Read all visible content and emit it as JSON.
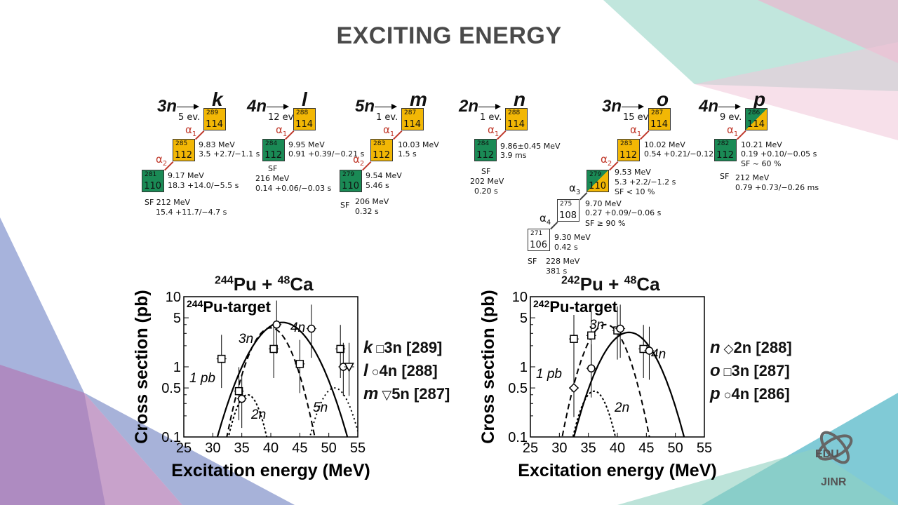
{
  "title": "EXCITING ENERGY",
  "chains": [
    {
      "channel": "3n",
      "letter": "k",
      "evts": "5 ev.",
      "boxes": [
        {
          "a": "289",
          "z": "114",
          "c": "yellow",
          "x": 290,
          "y": 154
        },
        {
          "a": "285",
          "z": "112",
          "c": "yellow",
          "x": 246,
          "y": 198
        },
        {
          "a": "281",
          "z": "110",
          "c": "green",
          "x": 202,
          "y": 242
        }
      ],
      "alphas": [
        {
          "t": "α1",
          "x": 264,
          "y": 176
        },
        {
          "t": "α2",
          "x": 222,
          "y": 218
        }
      ],
      "decays": [
        {
          "t": "9.83 MeV",
          "x": 283,
          "y": 201
        },
        {
          "t": "3.5 +2.7/−1.1 s",
          "x": 283,
          "y": 214
        },
        {
          "t": "9.17 MeV",
          "x": 239,
          "y": 245
        },
        {
          "t": "18.3 +14.0/−5.5 s",
          "x": 239,
          "y": 259
        },
        {
          "t": "SF 212 MeV",
          "x": 206,
          "y": 283
        },
        {
          "t": "15.4 +11.7/−4.7 s",
          "x": 222,
          "y": 297
        }
      ]
    },
    {
      "channel": "4n",
      "letter": "l",
      "evts": "12 ev.",
      "boxes": [
        {
          "a": "288",
          "z": "114",
          "c": "yellow",
          "x": 418,
          "y": 154
        },
        {
          "a": "284",
          "z": "112",
          "c": "green",
          "x": 374,
          "y": 198
        }
      ],
      "alphas": [
        {
          "t": "α1",
          "x": 393,
          "y": 176
        }
      ],
      "decays": [
        {
          "t": "9.95 MeV",
          "x": 411,
          "y": 201
        },
        {
          "t": "0.91 +0.39/−0.21 s",
          "x": 411,
          "y": 214
        },
        {
          "t": "SF",
          "x": 382,
          "y": 235
        },
        {
          "t": "216 MeV",
          "x": 364,
          "y": 249
        },
        {
          "t": "0.14 +0.06/−0.03 s",
          "x": 364,
          "y": 263
        }
      ]
    },
    {
      "channel": "5n",
      "letter": "m",
      "evts": "1 ev.",
      "boxes": [
        {
          "a": "287",
          "z": "114",
          "c": "yellow",
          "x": 572,
          "y": 154
        },
        {
          "a": "283",
          "z": "112",
          "c": "yellow",
          "x": 528,
          "y": 198
        },
        {
          "a": "279",
          "z": "110",
          "c": "green",
          "x": 484,
          "y": 242
        }
      ],
      "alphas": [
        {
          "t": "α1",
          "x": 546,
          "y": 176
        },
        {
          "t": "α2",
          "x": 503,
          "y": 218
        }
      ],
      "decays": [
        {
          "t": "10.03 MeV",
          "x": 567,
          "y": 201
        },
        {
          "t": "1.5 s",
          "x": 567,
          "y": 214
        },
        {
          "t": "9.54 MeV",
          "x": 521,
          "y": 245
        },
        {
          "t": "5.46 s",
          "x": 521,
          "y": 259
        },
        {
          "t": "SF",
          "x": 485,
          "y": 287
        },
        {
          "t": "206 MeV",
          "x": 506,
          "y": 282
        },
        {
          "t": "0.32 s",
          "x": 506,
          "y": 296
        }
      ]
    },
    {
      "channel": "2n",
      "letter": "n",
      "evts": "1 ev.",
      "boxes": [
        {
          "a": "288",
          "z": "114",
          "c": "yellow",
          "x": 720,
          "y": 154
        },
        {
          "a": "284",
          "z": "112",
          "c": "green",
          "x": 676,
          "y": 198
        }
      ],
      "alphas": [
        {
          "t": "α1",
          "x": 695,
          "y": 176
        }
      ],
      "decays": [
        {
          "t": "9.86±0.45 MeV",
          "x": 713,
          "y": 203
        },
        {
          "t": "3.9 ms",
          "x": 713,
          "y": 216
        },
        {
          "t": "SF",
          "x": 686,
          "y": 239
        },
        {
          "t": "202 MeV",
          "x": 670,
          "y": 253
        },
        {
          "t": "0.20 s",
          "x": 676,
          "y": 267
        }
      ]
    },
    {
      "channel": "3n",
      "letter": "o",
      "evts": "15 ev.",
      "boxes": [
        {
          "a": "287",
          "z": "114",
          "c": "yellow",
          "x": 924,
          "y": 154
        },
        {
          "a": "283",
          "z": "112",
          "c": "yellow",
          "x": 880,
          "y": 198
        },
        {
          "a": "279",
          "z": "110",
          "c": "split",
          "x": 836,
          "y": 242
        },
        {
          "a": "275",
          "z": "108",
          "c": "white",
          "x": 794,
          "y": 284
        },
        {
          "a": "271",
          "z": "106",
          "c": "white",
          "x": 752,
          "y": 326
        }
      ],
      "alphas": [
        {
          "t": "α1",
          "x": 898,
          "y": 176
        },
        {
          "t": "α2",
          "x": 856,
          "y": 218
        },
        {
          "t": "α3",
          "x": 811,
          "y": 259
        },
        {
          "t": "α4",
          "x": 769,
          "y": 302
        }
      ],
      "decays": [
        {
          "t": "10.02 MeV",
          "x": 918,
          "y": 201
        },
        {
          "t": "0.54 +0.21/−0.12 s",
          "x": 918,
          "y": 214
        },
        {
          "t": "9.53 MeV",
          "x": 876,
          "y": 240
        },
        {
          "t": "5.3 +2.2/−1.2 s",
          "x": 876,
          "y": 254
        },
        {
          "t": "SF < 10 %",
          "x": 876,
          "y": 268
        },
        {
          "t": "9.70 MeV",
          "x": 834,
          "y": 285
        },
        {
          "t": "0.27 +0.09/−0.06 s",
          "x": 834,
          "y": 298
        },
        {
          "t": "SF ≥ 90 %",
          "x": 834,
          "y": 313
        },
        {
          "t": "9.30 MeV",
          "x": 790,
          "y": 333
        },
        {
          "t": "0.42 s",
          "x": 790,
          "y": 347
        },
        {
          "t": "SF",
          "x": 752,
          "y": 367
        },
        {
          "t": "228 MeV",
          "x": 778,
          "y": 367
        },
        {
          "t": "381 s",
          "x": 778,
          "y": 381
        }
      ]
    },
    {
      "channel": "4n",
      "letter": "p",
      "evts": "9 ev.",
      "boxes": [
        {
          "a": "286",
          "z": "114",
          "c": "split",
          "x": 1062,
          "y": 154
        },
        {
          "a": "282",
          "z": "112",
          "c": "green",
          "x": 1018,
          "y": 198
        }
      ],
      "alphas": [
        {
          "t": "α1",
          "x": 1036,
          "y": 176
        }
      ],
      "decays": [
        {
          "t": "10.21 MeV",
          "x": 1056,
          "y": 201
        },
        {
          "t": "0.19 +0.10/−0.05 s",
          "x": 1056,
          "y": 214
        },
        {
          "t": "SF ~ 60 %",
          "x": 1056,
          "y": 228
        },
        {
          "t": "SF",
          "x": 1026,
          "y": 246
        },
        {
          "t": "212 MeV",
          "x": 1048,
          "y": 248
        },
        {
          "t": "0.79 +0.73/−0.26 ms",
          "x": 1048,
          "y": 262
        }
      ]
    }
  ],
  "chain_layout_note": "",
  "colors": {
    "yellow": "#f2b705",
    "green": "#1a8a55",
    "alpha_red": "#c0392b"
  },
  "chart_data": [
    {
      "type": "scatter",
      "title": "244Pu + 48Ca",
      "subtitle": "244Pu-target",
      "xlabel": "Excitation energy (MeV)",
      "ylabel": "Cross section (pb)",
      "xlim": [
        25,
        55
      ],
      "ylim": [
        0.1,
        10
      ],
      "yscale": "log",
      "xticks": [
        "25",
        "30",
        "35",
        "40",
        "45",
        "50",
        "55"
      ],
      "yticks": [
        "0.1",
        "0.5",
        "1",
        "5",
        "10"
      ],
      "series": [
        {
          "name": "k 3n [289]",
          "marker": "square",
          "points": [
            [
              31.5,
              1.3
            ],
            [
              34.5,
              0.45
            ],
            [
              40.5,
              1.8
            ],
            [
              45,
              1.1
            ],
            [
              52,
              1.8
            ]
          ]
        },
        {
          "name": "l 4n [288]",
          "marker": "circle",
          "points": [
            [
              35,
              0.35
            ],
            [
              41,
              4.0
            ],
            [
              47,
              3.5
            ],
            [
              52.5,
              1.0
            ]
          ]
        },
        {
          "name": "m 5n [287]",
          "marker": "triangle-down",
          "points": [
            [
              53.5,
              1.0
            ]
          ]
        }
      ],
      "curve_labels": [
        "2n",
        "3n",
        "4n",
        "5n",
        "1 pb"
      ],
      "legend": [
        {
          "letter": "k",
          "text": "3n [289]",
          "marker": "□"
        },
        {
          "letter": "l",
          "text": "4n [288]",
          "marker": "○"
        },
        {
          "letter": "m",
          "text": "5n [287]",
          "marker": "▽"
        }
      ]
    },
    {
      "type": "scatter",
      "title": "242Pu + 48Ca",
      "subtitle": "242Pu-target",
      "xlabel": "Excitation energy (MeV)",
      "ylabel": "Cross section (pb)",
      "xlim": [
        25,
        55
      ],
      "ylim": [
        0.1,
        10
      ],
      "yscale": "log",
      "xticks": [
        "25",
        "30",
        "35",
        "40",
        "45",
        "50",
        "55"
      ],
      "yticks": [
        "0.1",
        "0.5",
        "1",
        "5",
        "10"
      ],
      "series": [
        {
          "name": "n 2n [288]",
          "marker": "diamond",
          "points": [
            [
              32.5,
              0.5
            ]
          ]
        },
        {
          "name": "o 3n [287]",
          "marker": "square",
          "points": [
            [
              32.5,
              2.5
            ],
            [
              35.5,
              2.8
            ],
            [
              40,
              3.3
            ],
            [
              44.5,
              1.8
            ]
          ]
        },
        {
          "name": "p 4n [286]",
          "marker": "circle",
          "points": [
            [
              35.5,
              0.95
            ],
            [
              40.5,
              3.5
            ],
            [
              45.5,
              1.7
            ]
          ]
        }
      ],
      "curve_labels": [
        "2n",
        "3n",
        "4n",
        "1 pb"
      ],
      "legend": [
        {
          "letter": "n",
          "text": "2n [288]",
          "marker": "◇"
        },
        {
          "letter": "o",
          "text": "3n [287]",
          "marker": "□"
        },
        {
          "letter": "p",
          "text": "4n [286]",
          "marker": "○"
        }
      ]
    }
  ],
  "logo": {
    "top": "EDU",
    "bottom": "JINR"
  }
}
